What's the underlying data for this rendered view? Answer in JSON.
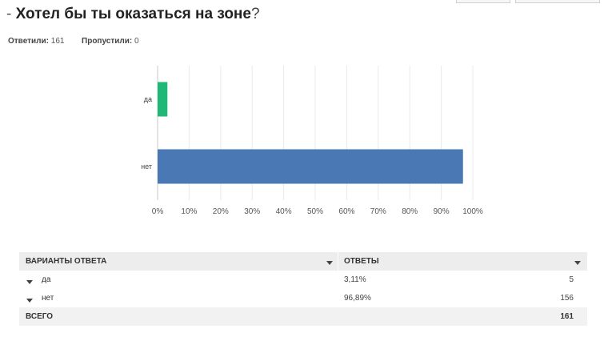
{
  "question": {
    "dash": "- ",
    "title": "Хотел бы ты оказаться на зоне",
    "qmark": "?"
  },
  "stats": {
    "answered_label": "Ответили:",
    "answered": "161",
    "skipped_label": "Пропустили:",
    "skipped": "0"
  },
  "chart_data": {
    "type": "bar",
    "orientation": "horizontal",
    "categories": [
      "да",
      "нет"
    ],
    "values": [
      3.11,
      96.89
    ],
    "colors": [
      "#1fb876",
      "#4a78b4"
    ],
    "xlim": [
      0,
      100
    ],
    "xticks": [
      "0%",
      "10%",
      "20%",
      "30%",
      "40%",
      "50%",
      "60%",
      "70%",
      "80%",
      "90%",
      "100%"
    ],
    "grid": true
  },
  "table": {
    "col_choices": "ВАРИАНТЫ ОТВЕТА",
    "col_responses": "ОТВЕТЫ",
    "rows": [
      {
        "label": "да",
        "percent": "3,11%",
        "count": "5"
      },
      {
        "label": "нет",
        "percent": "96,89%",
        "count": "156"
      }
    ],
    "total_label": "ВСЕГО",
    "total_count": "161"
  }
}
